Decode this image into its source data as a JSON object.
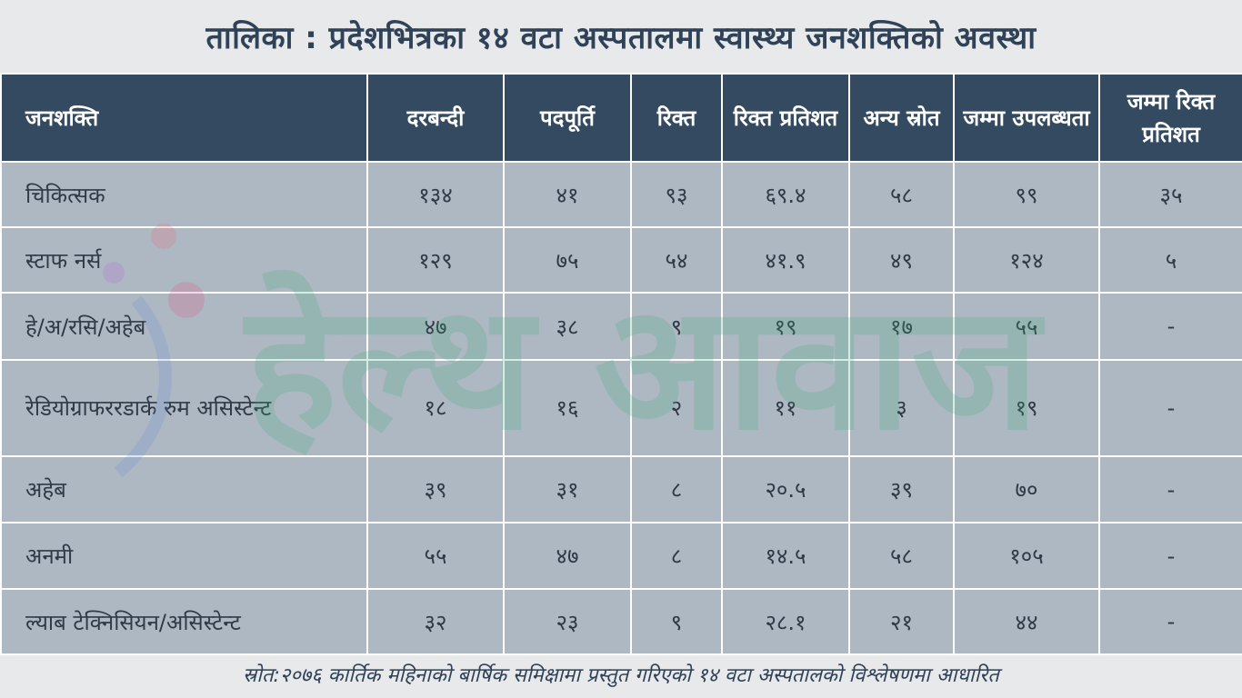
{
  "title": "तालिका : प्रदेशभित्रका १४ वटा अस्पतालमा स्वास्थ्य जनशक्तिको अवस्था",
  "columns": [
    "जनशक्ति",
    "दरबन्दी",
    "पदपूर्ति",
    "रिक्त",
    "रिक्त प्रतिशत",
    "अन्य स्रोत",
    "जम्मा उपलब्धता",
    "जम्मा रिक्त प्रतिशत"
  ],
  "rows": [
    {
      "name": "चिकित्सक",
      "c1": "१३४",
      "c2": "४१",
      "c3": "९३",
      "c4": "६९.४",
      "c5": "५८",
      "c6": "९९",
      "c7": "३५"
    },
    {
      "name": "स्टाफ नर्स",
      "c1": "१२९",
      "c2": "७५",
      "c3": "५४",
      "c4": "४१.९",
      "c5": "४९",
      "c6": "१२४",
      "c7": "५"
    },
    {
      "name": "हे/अ/रसि/अहेब",
      "c1": "४७",
      "c2": "३८",
      "c3": "९",
      "c4": "१९",
      "c5": "१७",
      "c6": "५५",
      "c7": "-"
    },
    {
      "name": "रेडियोग्राफररडार्क रुम असिस्टेन्ट",
      "c1": "१८",
      "c2": "१६",
      "c3": "२",
      "c4": "११",
      "c5": "३",
      "c6": "१९",
      "c7": "-"
    },
    {
      "name": "अहेब",
      "c1": "३९",
      "c2": "३१",
      "c3": "८",
      "c4": "२०.५",
      "c5": "३९",
      "c6": "७०",
      "c7": "-"
    },
    {
      "name": "अनमी",
      "c1": "५५",
      "c2": "४७",
      "c3": "८",
      "c4": "१४.५",
      "c5": "५८",
      "c6": "१०५",
      "c7": "-"
    },
    {
      "name": "ल्याब टेक्निसियन/असिस्टेन्ट",
      "c1": "३२",
      "c2": "२३",
      "c3": "९",
      "c4": "२८.१",
      "c5": "२१",
      "c6": "४४",
      "c7": "-"
    }
  ],
  "source": "स्रोत:२०७६ कार्तिक महिनाको बार्षिक समिक्षामा प्रस्तुत गरिएको १४ वटा अस्पतालको विश्लेषणमा आधारित",
  "watermark_text": "हेल्थ आवाज",
  "colors": {
    "header_bg": "#334a60",
    "cell_bg": "#aeb8c3",
    "title": "#2f4257",
    "page_bg": "#e8e9eb"
  }
}
